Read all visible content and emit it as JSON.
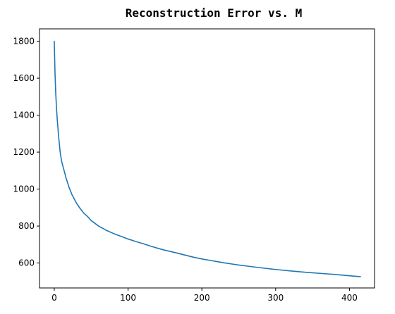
{
  "chart_data": {
    "type": "line",
    "title": "Reconstruction Error vs. M",
    "xlabel": "",
    "ylabel": "",
    "xlim": [
      -20,
      434
    ],
    "ylim": [
      465,
      1867
    ],
    "xticks": [
      0,
      100,
      200,
      300,
      400
    ],
    "yticks": [
      600,
      800,
      1000,
      1200,
      1400,
      1600,
      1800
    ],
    "grid": false,
    "colors": {
      "line": "#1f77b4"
    },
    "series": [
      {
        "x": [
          0,
          1,
          2,
          3,
          4,
          5,
          6,
          7,
          8,
          10,
          12,
          14,
          16,
          18,
          20,
          22,
          24,
          26,
          28,
          30,
          35,
          40,
          45,
          50,
          60,
          70,
          80,
          90,
          100,
          110,
          120,
          130,
          140,
          150,
          160,
          170,
          180,
          190,
          200,
          210,
          220,
          230,
          240,
          250,
          260,
          280,
          300,
          320,
          340,
          360,
          380,
          400,
          415
        ],
        "y": [
          1800,
          1630,
          1520,
          1440,
          1380,
          1330,
          1280,
          1240,
          1200,
          1150,
          1120,
          1090,
          1060,
          1035,
          1010,
          990,
          970,
          955,
          940,
          925,
          895,
          870,
          852,
          830,
          800,
          778,
          760,
          745,
          730,
          717,
          705,
          692,
          680,
          669,
          660,
          650,
          640,
          630,
          622,
          615,
          608,
          601,
          595,
          589,
          584,
          574,
          565,
          557,
          550,
          544,
          538,
          531,
          526
        ]
      }
    ]
  }
}
